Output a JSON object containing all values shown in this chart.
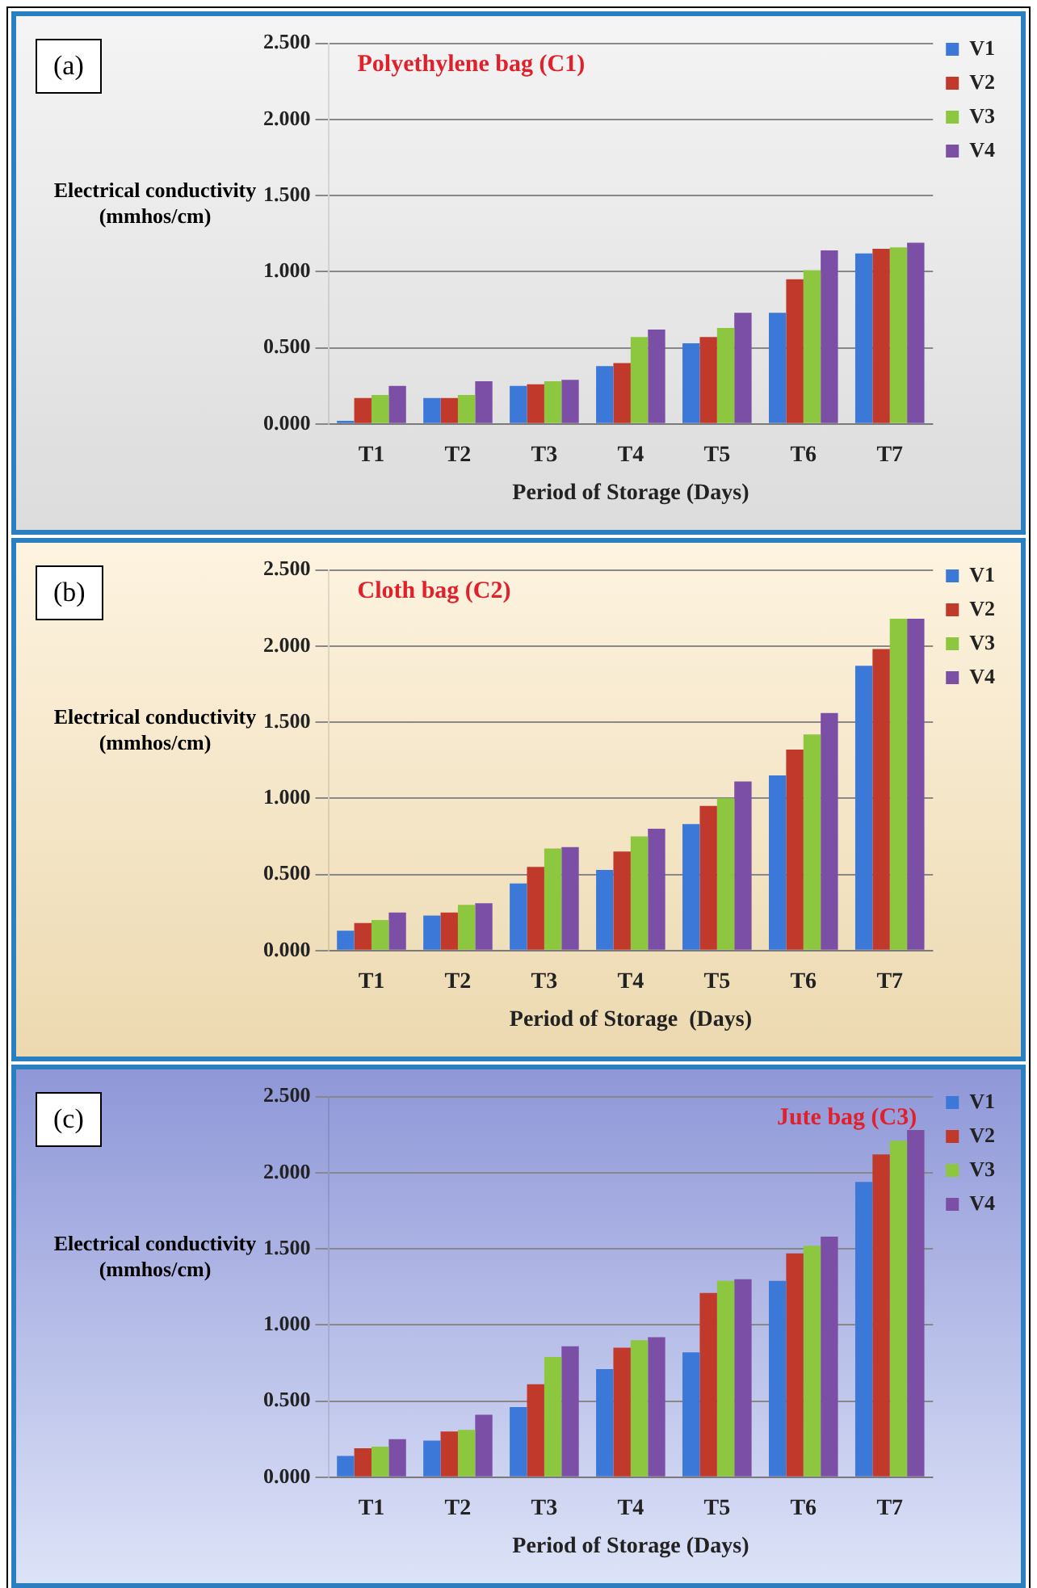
{
  "chart_data": [
    {
      "type": "bar",
      "title": "Polyethylene bag (C1)",
      "xlabel": "Period of Storage (Days)",
      "ylabel": "Electrical conductivity (mmhos/cm)",
      "annotations": [
        "(a)"
      ],
      "categories": [
        "T1",
        "T2",
        "T3",
        "T4",
        "T5",
        "T6",
        "T7"
      ],
      "series": [
        {
          "name": "V1",
          "color": "#3c78d8",
          "values": [
            0.02,
            0.17,
            0.25,
            0.38,
            0.53,
            0.73,
            1.12
          ]
        },
        {
          "name": "V2",
          "color": "#c0392b",
          "values": [
            0.17,
            0.17,
            0.26,
            0.4,
            0.57,
            0.95,
            1.15
          ]
        },
        {
          "name": "V3",
          "color": "#8dc63f",
          "values": [
            0.19,
            0.19,
            0.28,
            0.57,
            0.63,
            1.01,
            1.16
          ]
        },
        {
          "name": "V4",
          "color": "#7b4fa5",
          "values": [
            0.25,
            0.28,
            0.29,
            0.62,
            0.73,
            1.14,
            1.19
          ]
        }
      ],
      "ylim": [
        0,
        2.5
      ],
      "yticks": [
        {
          "value": 0,
          "label": "0.000"
        },
        {
          "value": 0.5,
          "label": "0.500"
        },
        {
          "value": 1,
          "label": "1.000"
        },
        {
          "value": 1.5,
          "label": "1.500"
        },
        {
          "value": 2,
          "label": "2.000"
        },
        {
          "value": 2.5,
          "label": "2.500"
        }
      ],
      "grid": "y",
      "legend": "top right"
    },
    {
      "type": "bar",
      "title": "Cloth bag (C2)",
      "xlabel": "Period of Storage  (Days)",
      "ylabel": "Electrical conductivity (mmhos/cm)",
      "annotations": [
        "(b)"
      ],
      "categories": [
        "T1",
        "T2",
        "T3",
        "T4",
        "T5",
        "T6",
        "T7"
      ],
      "series": [
        {
          "name": "V1",
          "color": "#3c78d8",
          "values": [
            0.13,
            0.23,
            0.44,
            0.53,
            0.83,
            1.15,
            1.87
          ]
        },
        {
          "name": "V2",
          "color": "#c0392b",
          "values": [
            0.18,
            0.25,
            0.55,
            0.65,
            0.95,
            1.32,
            1.98
          ]
        },
        {
          "name": "V3",
          "color": "#8dc63f",
          "values": [
            0.2,
            0.3,
            0.67,
            0.75,
            1.0,
            1.42,
            2.18
          ]
        },
        {
          "name": "V4",
          "color": "#7b4fa5",
          "values": [
            0.25,
            0.31,
            0.68,
            0.8,
            1.11,
            1.56,
            2.18
          ]
        }
      ],
      "ylim": [
        0,
        2.5
      ],
      "yticks": [
        {
          "value": 0,
          "label": "0.000"
        },
        {
          "value": 0.5,
          "label": "0.500"
        },
        {
          "value": 1,
          "label": "1.000"
        },
        {
          "value": 1.5,
          "label": "1.500"
        },
        {
          "value": 2,
          "label": "2.000"
        },
        {
          "value": 2.5,
          "label": "2.500"
        }
      ],
      "grid": "y",
      "legend": "top right"
    },
    {
      "type": "bar",
      "title": "Jute bag (C3)",
      "xlabel": "Period of Storage (Days)",
      "ylabel": "Electrical conductivity (mmhos/cm)",
      "annotations": [
        "(c)"
      ],
      "categories": [
        "T1",
        "T2",
        "T3",
        "T4",
        "T5",
        "T6",
        "T7"
      ],
      "series": [
        {
          "name": "V1",
          "color": "#3c78d8",
          "values": [
            0.14,
            0.24,
            0.46,
            0.71,
            0.82,
            1.29,
            1.94
          ]
        },
        {
          "name": "V2",
          "color": "#c0392b",
          "values": [
            0.19,
            0.3,
            0.61,
            0.85,
            1.21,
            1.47,
            2.12
          ]
        },
        {
          "name": "V3",
          "color": "#8dc63f",
          "values": [
            0.2,
            0.31,
            0.79,
            0.9,
            1.29,
            1.52,
            2.21
          ]
        },
        {
          "name": "V4",
          "color": "#7b4fa5",
          "values": [
            0.25,
            0.41,
            0.86,
            0.92,
            1.3,
            1.58,
            2.28
          ]
        }
      ],
      "ylim": [
        0,
        2.5
      ],
      "yticks": [
        {
          "value": 0,
          "label": "0.000"
        },
        {
          "value": 0.5,
          "label": "0.500"
        },
        {
          "value": 1,
          "label": "1.000"
        },
        {
          "value": 1.5,
          "label": "1.500"
        },
        {
          "value": 2,
          "label": "2.000"
        },
        {
          "value": 2.5,
          "label": "2.500"
        }
      ],
      "grid": "y",
      "legend": "top right"
    }
  ]
}
